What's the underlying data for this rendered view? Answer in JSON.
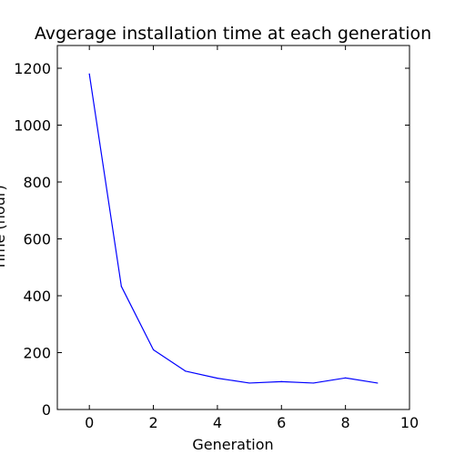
{
  "chart_data": {
    "type": "line",
    "title": "Avgerage installation time at each generation",
    "xlabel": "Generation",
    "ylabel": "Time (hour)",
    "xlim": [
      -1,
      10
    ],
    "ylim": [
      0,
      1280
    ],
    "x_ticks": [
      0,
      2,
      4,
      6,
      8,
      10
    ],
    "y_ticks": [
      0,
      200,
      400,
      600,
      800,
      1000,
      1200
    ],
    "grid": false,
    "legend": "none",
    "series": [
      {
        "color": "#0000ff",
        "x": [
          0,
          1,
          2,
          3,
          4,
          5,
          6,
          7,
          8,
          9
        ],
        "y": [
          1180,
          433,
          210,
          135,
          110,
          93,
          98,
          93,
          111,
          93
        ]
      }
    ]
  }
}
